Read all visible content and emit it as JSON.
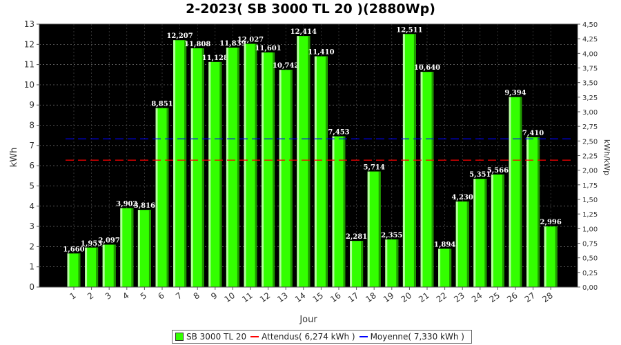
{
  "chart_data": {
    "type": "bar",
    "title": "2-2023( SB 3000 TL 20 )(2880Wp)",
    "xlabel": "Jour",
    "ylabel": "kWh",
    "y2label": "kWh/kWp",
    "ylim": [
      0,
      13
    ],
    "y2lim": [
      0,
      4.5
    ],
    "grid": true,
    "legend_position": "bottom",
    "categories": [
      "1",
      "2",
      "3",
      "4",
      "5",
      "6",
      "7",
      "8",
      "9",
      "10",
      "11",
      "12",
      "13",
      "14",
      "15",
      "16",
      "17",
      "18",
      "19",
      "20",
      "21",
      "22",
      "23",
      "24",
      "25",
      "26",
      "27",
      "28"
    ],
    "series": [
      {
        "name": "SB 3000 TL 20",
        "values": [
          1.66,
          1.953,
          2.097,
          3.902,
          3.816,
          8.851,
          12.207,
          11.808,
          11.128,
          11.839,
          12.027,
          11.601,
          10.742,
          12.414,
          11.41,
          7.453,
          2.281,
          5.714,
          2.355,
          12.511,
          10.64,
          1.894,
          4.23,
          5.351,
          5.566,
          9.394,
          7.41,
          2.996
        ],
        "labels": [
          "1,660",
          "1,953",
          "2,097",
          "3,902",
          "3,816",
          "8,851",
          "12,207",
          "11,808",
          "11,128",
          "11,839",
          "12,027",
          "11,601",
          "10,742",
          "12,414",
          "11,410",
          "7,453",
          "2,281",
          "5,714",
          "2,355",
          "12,511",
          "10,640",
          "1,894",
          "4,230",
          "5,351",
          "5,566",
          "9,394",
          "7,410",
          "2,996"
        ],
        "color": "#33ff00"
      }
    ],
    "reference_lines": [
      {
        "name": "Attendus",
        "legend": "Attendus( 6,274 kWh )",
        "value": 6.274,
        "color": "#ff0000"
      },
      {
        "name": "Moyenne",
        "legend": "Moyenne( 7,330 kWh )",
        "value": 7.33,
        "color": "#0000ff"
      }
    ],
    "yticks": [
      "0",
      "1",
      "2",
      "3",
      "4",
      "5",
      "6",
      "7",
      "8",
      "9",
      "10",
      "11",
      "12",
      "13"
    ],
    "y2ticks": [
      "0,00",
      "0,25",
      "0,50",
      "0,75",
      "1,00",
      "1,25",
      "1,50",
      "1,75",
      "2,00",
      "2,25",
      "2,50",
      "2,75",
      "3,00",
      "3,25",
      "3,50",
      "3,75",
      "4,00",
      "4,25",
      "4,50"
    ],
    "plot_background": "#000000"
  }
}
